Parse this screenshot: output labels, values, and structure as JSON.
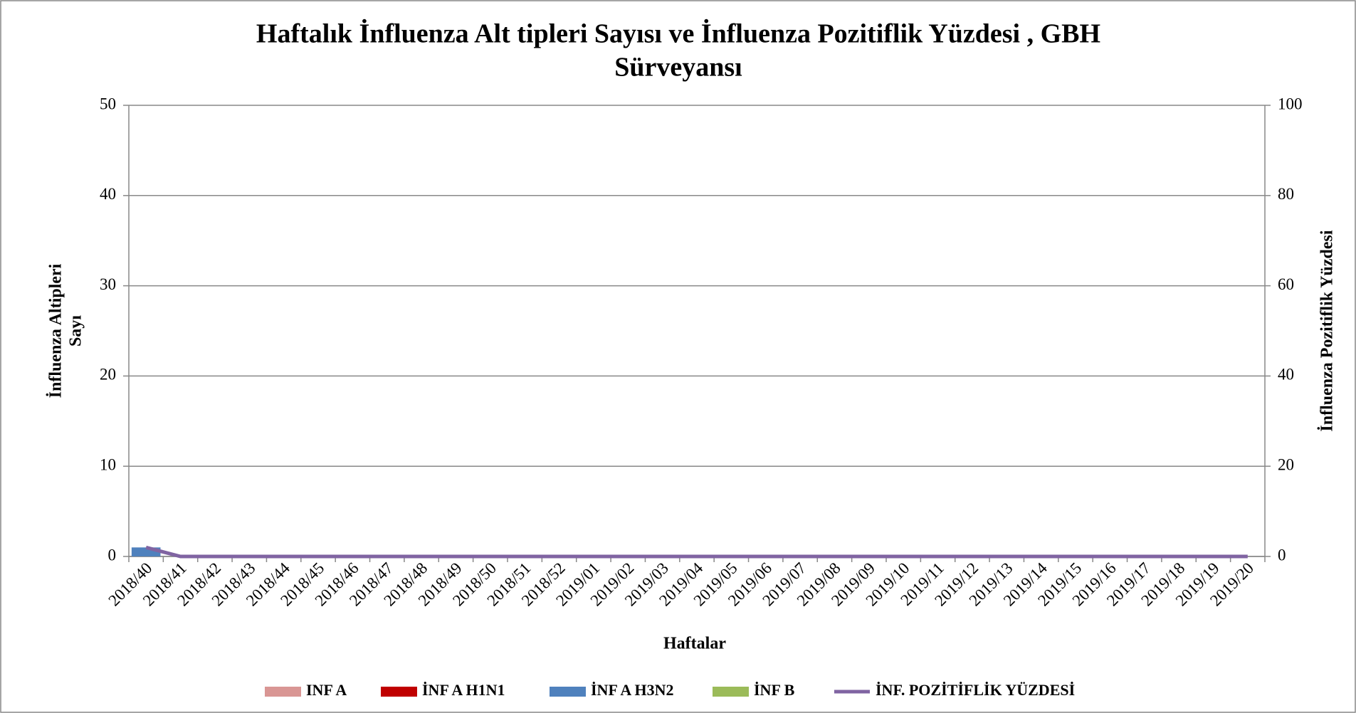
{
  "chart_data": {
    "type": "bar",
    "title": [
      "Haftalık İnfluenza Alt tipleri Sayısı ve İnfluenza Pozitiflik Yüzdesi , GBH",
      "Sürveyansı"
    ],
    "x_label": "Haftalar",
    "y_label": [
      "İnfluenza Altipleri",
      "Sayı"
    ],
    "y2_label": "İnfluenza Pozitiflik Yüzdesi",
    "categories": [
      "2018/40",
      "2018/41",
      "2018/42",
      "2018/43",
      "2018/44",
      "2018/45",
      "2018/46",
      "2018/47",
      "2018/48",
      "2018/49",
      "2018/50",
      "2018/51",
      "2018/52",
      "2019/01",
      "2019/02",
      "2019/03",
      "2019/04",
      "2019/05",
      "2019/06",
      "2019/07",
      "2019/08",
      "2019/09",
      "2019/10",
      "2019/11",
      "2019/12",
      "2019/13",
      "2019/14",
      "2019/15",
      "2019/16",
      "2019/17",
      "2019/18",
      "2019/19",
      "2019/20"
    ],
    "series": [
      {
        "name": "INF A",
        "color": "#d99694",
        "values": [
          0,
          0,
          0,
          0,
          0,
          0,
          0,
          0,
          0,
          0,
          0,
          0,
          0,
          0,
          0,
          0,
          0,
          0,
          0,
          0,
          0,
          0,
          0,
          0,
          0,
          0,
          0,
          0,
          0,
          0,
          0,
          0,
          0
        ]
      },
      {
        "name": "İNF A H1N1",
        "color": "#c00000",
        "values": [
          0,
          0,
          0,
          0,
          0,
          0,
          0,
          0,
          0,
          0,
          0,
          0,
          0,
          0,
          0,
          0,
          0,
          0,
          0,
          0,
          0,
          0,
          0,
          0,
          0,
          0,
          0,
          0,
          0,
          0,
          0,
          0,
          0
        ]
      },
      {
        "name": "İNF A H3N2",
        "color": "#4f81bd",
        "values": [
          1,
          0,
          0,
          0,
          0,
          0,
          0,
          0,
          0,
          0,
          0,
          0,
          0,
          0,
          0,
          0,
          0,
          0,
          0,
          0,
          0,
          0,
          0,
          0,
          0,
          0,
          0,
          0,
          0,
          0,
          0,
          0,
          0
        ]
      },
      {
        "name": "İNF B",
        "color": "#9bbb59",
        "values": [
          0,
          0,
          0,
          0,
          0,
          0,
          0,
          0,
          0,
          0,
          0,
          0,
          0,
          0,
          0,
          0,
          0,
          0,
          0,
          0,
          0,
          0,
          0,
          0,
          0,
          0,
          0,
          0,
          0,
          0,
          0,
          0,
          0
        ]
      },
      {
        "name": "İNF. POZİTİFLİK YÜZDESİ",
        "color": "#8064a2",
        "type": "line",
        "axis": "y2",
        "values": [
          2,
          0,
          0,
          0,
          0,
          0,
          0,
          0,
          0,
          0,
          0,
          0,
          0,
          0,
          0,
          0,
          0,
          0,
          0,
          0,
          0,
          0,
          0,
          0,
          0,
          0,
          0,
          0,
          0,
          0,
          0,
          0,
          0
        ]
      }
    ],
    "stacked": true,
    "ylim": [
      0,
      50
    ],
    "yticks": [
      0,
      10,
      20,
      30,
      40,
      50
    ],
    "y2lim": [
      0,
      100
    ],
    "y2ticks": [
      0,
      20,
      40,
      60,
      80,
      100
    ],
    "grid": true,
    "legend": "bottom"
  }
}
